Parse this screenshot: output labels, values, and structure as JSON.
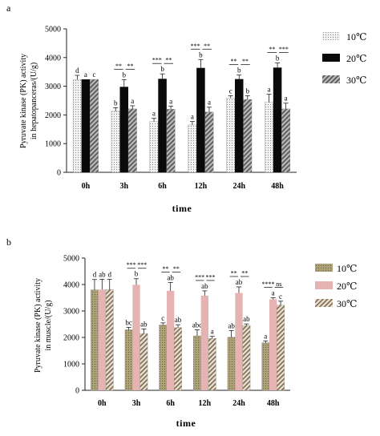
{
  "colors": {
    "a": {
      "s10": "#eaeaea",
      "s20": "#0a0a0a",
      "s30": "#7f7f7f"
    },
    "b": {
      "s10": "#a0956a",
      "s20": "#e6b3b3",
      "s30": "#d6cbb3"
    }
  },
  "chart_data": [
    {
      "type": "bar",
      "panel": "a",
      "categories": [
        "0h",
        "3h",
        "6h",
        "12h",
        "24h",
        "48h"
      ],
      "xlabel": "time",
      "ylabel_lines": [
        "Pyruvate kinase (PK) activity",
        "in hepatopanceras/(U/g)"
      ],
      "ylim": [
        0,
        5000
      ],
      "yticks": [
        0,
        1000,
        2000,
        3000,
        4000,
        5000
      ],
      "grid": false,
      "legend_position": "right",
      "series": [
        {
          "name": "10℃",
          "pattern": "dots",
          "values": [
            3230,
            2130,
            1770,
            1650,
            2590,
            2440
          ],
          "errors": [
            150,
            120,
            110,
            120,
            80,
            280
          ],
          "letters": [
            "d",
            "b",
            "a",
            "a",
            "c",
            "a"
          ]
        },
        {
          "name": "20℃",
          "pattern": "solid",
          "values": [
            3240,
            2980,
            3260,
            3640,
            3250,
            3650
          ],
          "errors": [
            0,
            250,
            170,
            290,
            140,
            160
          ],
          "letters": [
            "a",
            "b",
            "b",
            "b",
            "b",
            "b"
          ]
        },
        {
          "name": "30℃",
          "pattern": "stripes",
          "values": [
            3240,
            2210,
            2200,
            2100,
            2540,
            2210
          ],
          "errors": [
            0,
            110,
            110,
            170,
            130,
            200
          ],
          "letters": [
            "c",
            "a",
            "a",
            "a",
            "b",
            "a"
          ]
        }
      ],
      "significance": [
        [
          "**",
          "**"
        ],
        [
          "***",
          "**"
        ],
        [
          "***",
          "**"
        ],
        [
          "**",
          "**"
        ],
        [
          "**",
          "***"
        ]
      ]
    },
    {
      "type": "bar",
      "panel": "b",
      "categories": [
        "0h",
        "3h",
        "6h",
        "12h",
        "24h",
        "48h"
      ],
      "xlabel": "time",
      "ylabel_lines": [
        "Pyruvate kinase (PK) activity",
        "in muscle/(U/g)"
      ],
      "ylim": [
        0,
        5000
      ],
      "yticks": [
        0,
        1000,
        2000,
        3000,
        4000,
        5000
      ],
      "grid": false,
      "legend_position": "right",
      "series": [
        {
          "name": "10℃",
          "pattern": "dots",
          "values": [
            3800,
            2290,
            2470,
            2060,
            2010,
            1800
          ],
          "errors": [
            390,
            90,
            80,
            230,
            250,
            70
          ],
          "letters": [
            "d",
            "bc",
            "c",
            "abc",
            "ab",
            "a"
          ]
        },
        {
          "name": "20℃",
          "pattern": "solid",
          "values": [
            3810,
            3990,
            3760,
            3580,
            3680,
            3440
          ],
          "errors": [
            390,
            230,
            320,
            180,
            230,
            60
          ],
          "letters": [
            "ab",
            "b",
            "ab",
            "ab",
            "ab",
            "a"
          ]
        },
        {
          "name": "30℃",
          "pattern": "stripes",
          "values": [
            3810,
            2150,
            2370,
            1960,
            2450,
            3220
          ],
          "errors": [
            390,
            170,
            110,
            80,
            60,
            150
          ],
          "letters": [
            "d",
            "ab",
            "ab",
            "a",
            "ab",
            "c"
          ]
        }
      ],
      "significance": [
        [
          "***",
          "***"
        ],
        [
          "**",
          "**"
        ],
        [
          "***",
          "***"
        ],
        [
          "**",
          "**"
        ],
        [
          "****",
          "ns"
        ]
      ]
    }
  ]
}
